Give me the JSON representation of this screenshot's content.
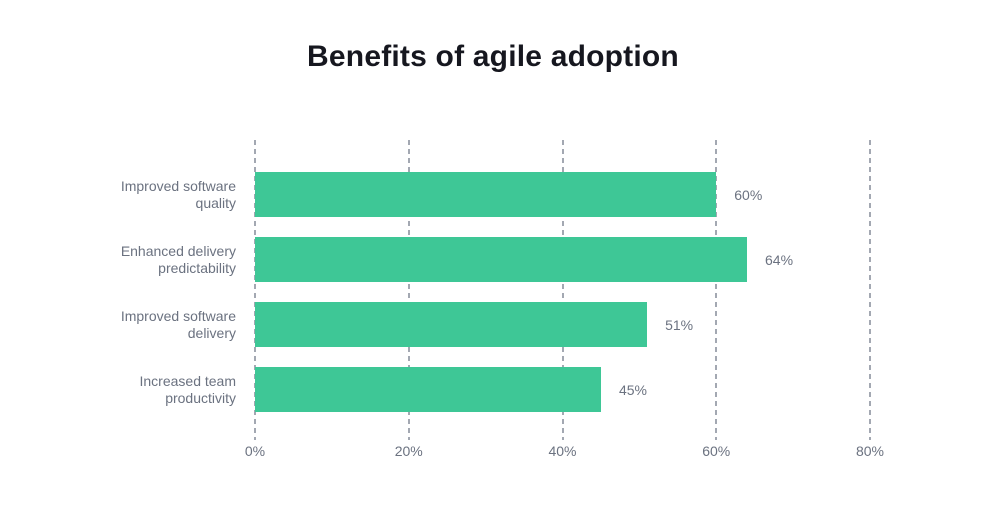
{
  "page": {
    "background": "#ffffff"
  },
  "chart_data": {
    "type": "bar",
    "orientation": "horizontal",
    "title": "Benefits of agile adoption",
    "categories": [
      "Improved software quality",
      "Enhanced delivery predictability",
      "Improved software delivery",
      "Increased team productivity"
    ],
    "values": [
      60,
      64,
      51,
      45
    ],
    "value_labels": [
      "60%",
      "64%",
      "51%",
      "45%"
    ],
    "x_ticks": [
      "0%",
      "20%",
      "40%",
      "60%",
      "80%"
    ],
    "x_tick_positions_pct": [
      0,
      25,
      50,
      75,
      100
    ],
    "xlim": [
      0,
      80
    ],
    "xlabel": "",
    "ylabel": "",
    "grid": "vertical-dashed",
    "legend": "none",
    "colors": {
      "bar": "#3ec796",
      "gridline": "#a3a8b2",
      "label_text": "#6b7280",
      "title_text": "#16171f"
    }
  }
}
